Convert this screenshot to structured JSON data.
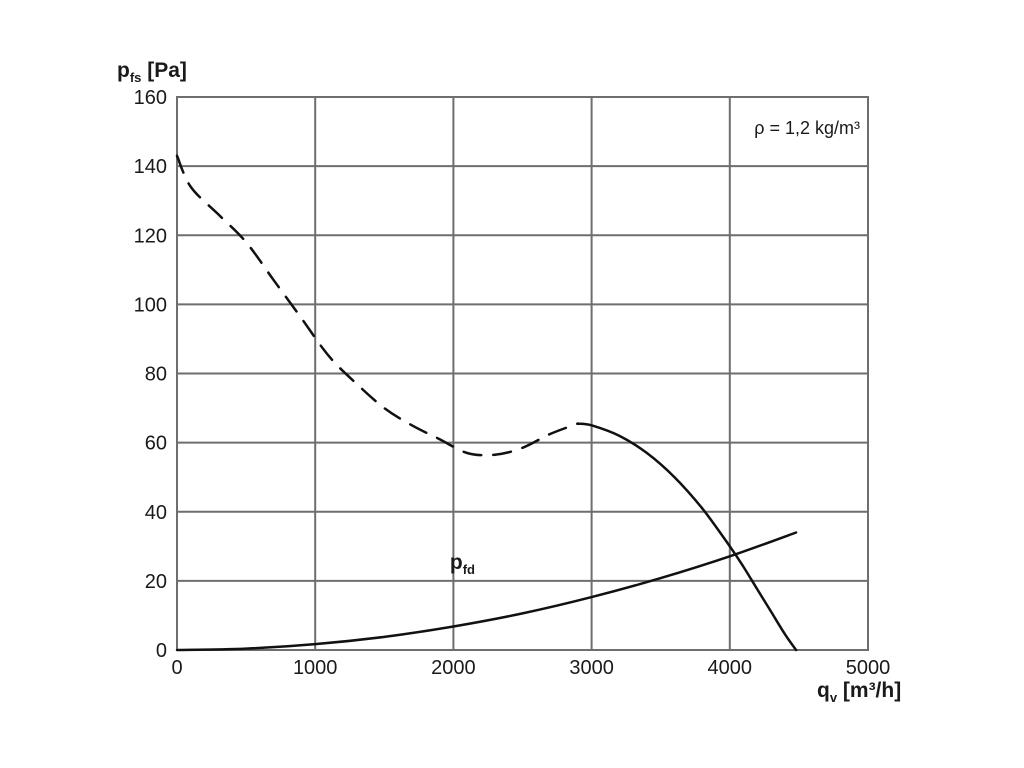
{
  "chart_data": {
    "type": "line",
    "xlabel": {
      "main": "q",
      "sub": "v",
      "unit": " [m³/h]"
    },
    "ylabel": {
      "main": "p",
      "sub": "fs",
      "unit": " [Pa]"
    },
    "xlim": [
      0,
      5000
    ],
    "ylim": [
      0,
      160
    ],
    "xticks": [
      0,
      1000,
      2000,
      3000,
      4000,
      5000
    ],
    "yticks": [
      0,
      20,
      40,
      60,
      80,
      100,
      120,
      140,
      160
    ],
    "grid": true,
    "annotation": "ρ = 1,2 kg/m³",
    "series": [
      {
        "key": "pfs_unstable",
        "style": "dashed",
        "x": [
          0,
          100,
          300,
          500,
          700,
          900,
          1100,
          1300,
          1500,
          1700,
          1900,
          2100,
          2300,
          2500,
          2700,
          2900
        ],
        "y": [
          143,
          134,
          126,
          118,
          107,
          96,
          85,
          77,
          70,
          65,
          61,
          57,
          56.5,
          58.5,
          62.5,
          65.5
        ]
      },
      {
        "key": "pfs_stable",
        "style": "solid",
        "x": [
          2900,
          3000,
          3200,
          3400,
          3600,
          3800,
          4000,
          4100,
          4200,
          4300,
          4400,
          4480
        ],
        "y": [
          65.5,
          65,
          62,
          57,
          50,
          41,
          30,
          24,
          17.5,
          11,
          4.5,
          0
        ]
      },
      {
        "key": "pfd",
        "name_main": "p",
        "name_sub": "fd",
        "style": "solid",
        "label_at": [
          2300,
          13
        ],
        "x": [
          0,
          500,
          1000,
          1500,
          2000,
          2500,
          3000,
          3500,
          4000,
          4480
        ],
        "y": [
          0,
          0.4,
          1.7,
          3.8,
          6.8,
          10.6,
          15.3,
          20.8,
          27.1,
          34
        ]
      }
    ]
  }
}
